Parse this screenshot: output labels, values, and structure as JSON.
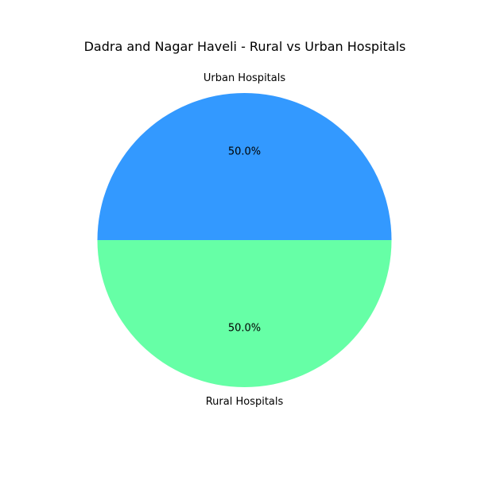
{
  "chart_data": {
    "type": "pie",
    "title": "Dadra and Nagar Haveli - Rural vs Urban Hospitals",
    "slices": [
      {
        "label": "Rural Hospitals",
        "value": 50.0,
        "percent_label": "50.0%",
        "color": "#66ffa6"
      },
      {
        "label": "Urban Hospitals",
        "value": 50.0,
        "percent_label": "50.0%",
        "color": "#3399ff"
      }
    ],
    "start_angle": 180,
    "direction": "counterclockwise",
    "legend": "none"
  }
}
